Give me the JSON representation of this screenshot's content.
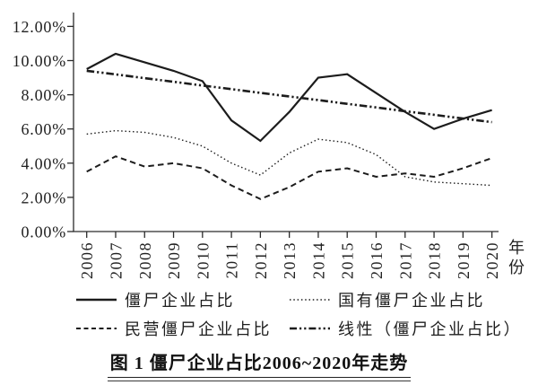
{
  "chart_data": {
    "type": "line",
    "title": "图 1 僵尸企业占比2006~2020年走势",
    "xlabel": "年份",
    "ylabel": "",
    "x_labels": [
      "2006",
      "2007",
      "2008",
      "2009",
      "2010",
      "2011",
      "2012",
      "2013",
      "2014",
      "2015",
      "2016",
      "2017",
      "2018",
      "2019",
      "2020"
    ],
    "ylim": [
      0,
      12
    ],
    "y_ticks": [
      0,
      2,
      4,
      6,
      8,
      10,
      12
    ],
    "y_tick_labels": [
      "0.00%",
      "2.00%",
      "4.00%",
      "6.00%",
      "8.00%",
      "10.00%",
      "12.00%"
    ],
    "grid": false,
    "legend_position": "bottom",
    "line_color": "#1c1c1c",
    "series": [
      {
        "name": "僵尸企业占比",
        "style": "solid",
        "values": [
          9.5,
          10.4,
          9.9,
          9.4,
          8.8,
          6.5,
          5.3,
          7.0,
          9.0,
          9.2,
          8.1,
          7.0,
          6.0,
          6.6,
          7.1
        ]
      },
      {
        "name": "国有僵尸企业占比",
        "style": "dotted",
        "values": [
          5.7,
          5.9,
          5.8,
          5.5,
          5.0,
          4.0,
          3.3,
          4.6,
          5.4,
          5.2,
          4.5,
          3.2,
          2.9,
          2.8,
          2.7
        ]
      },
      {
        "name": "民营僵尸企业占比",
        "style": "dashed",
        "values": [
          3.5,
          4.4,
          3.8,
          4.0,
          3.7,
          2.7,
          1.9,
          2.6,
          3.5,
          3.7,
          3.2,
          3.4,
          3.2,
          3.7,
          4.3
        ]
      },
      {
        "name": "线性（僵尸企业占比）",
        "style": "dashdot",
        "values": [
          9.4,
          9.19,
          8.97,
          8.76,
          8.54,
          8.33,
          8.11,
          7.9,
          7.69,
          7.47,
          7.26,
          7.04,
          6.83,
          6.61,
          6.4
        ]
      }
    ]
  }
}
